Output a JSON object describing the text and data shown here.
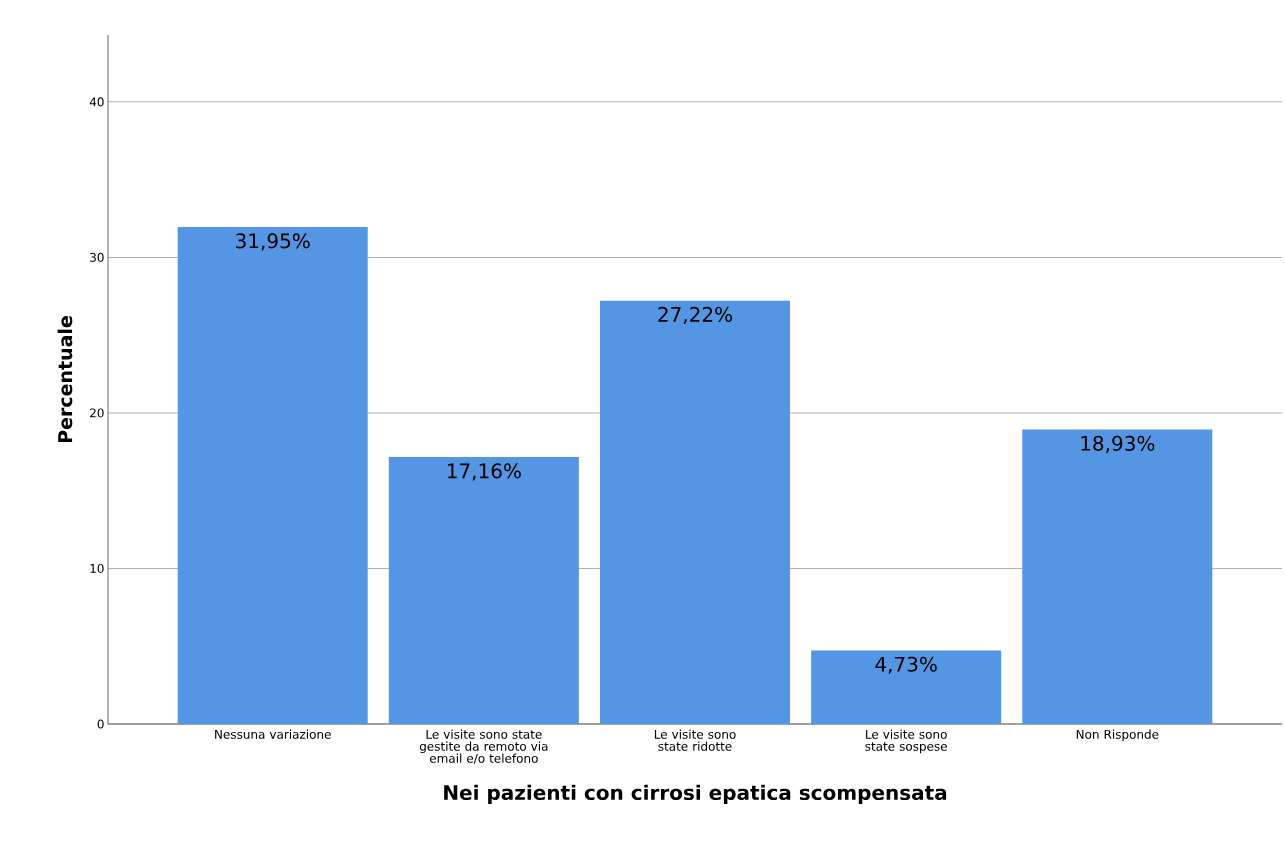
{
  "chart_data": {
    "type": "bar",
    "xlabel": "Nei pazienti con cirrosi epatica scompensata",
    "ylabel": "Percentuale",
    "categories": [
      "Nessuna variazione",
      "Le visite sono state gestite da remoto via email e/o telefono",
      "Le visite sono state ridotte",
      "Le visite sono state sospese",
      "Non Risponde"
    ],
    "values": [
      31.95,
      17.16,
      27.22,
      4.73,
      18.93
    ],
    "value_labels": [
      "31,95%",
      "17,16%",
      "27,22%",
      "4,73%",
      "18,93%"
    ],
    "color": "#5596e4",
    "ylim": [
      0,
      44.3
    ],
    "yticks": [
      0,
      10,
      20,
      30,
      40
    ],
    "grid": "y"
  }
}
